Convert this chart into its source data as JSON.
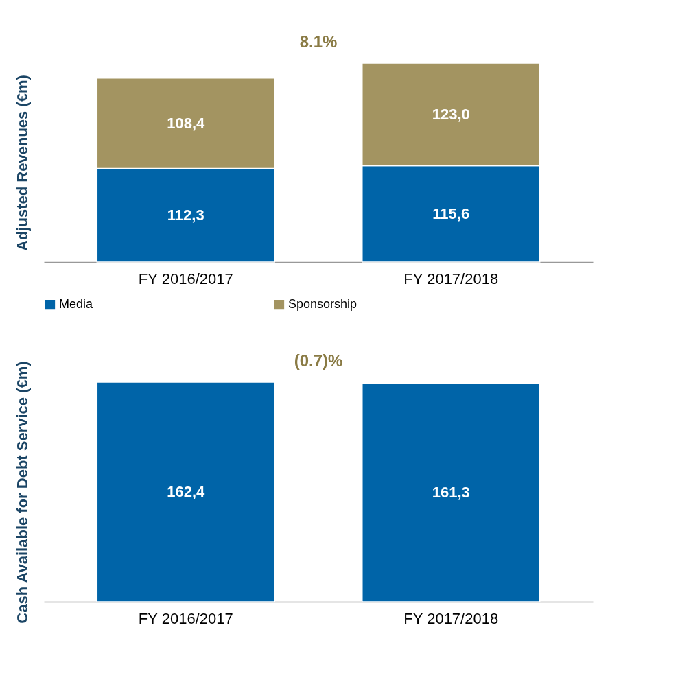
{
  "chart_data": [
    {
      "type": "bar",
      "ylabel": "Adjusted Revenues (€m)",
      "categories": [
        "FY 2016/2017",
        "FY 2017/2018"
      ],
      "stacked": true,
      "series": [
        {
          "name": "Media",
          "color": "#0064a8",
          "values": [
            112.3,
            115.6
          ],
          "value_labels": [
            "112,3",
            "115,6"
          ]
        },
        {
          "name": "Sponsorship",
          "color": "#a39461",
          "values": [
            108.4,
            123.0
          ],
          "value_labels": [
            "108,4",
            "123,0"
          ]
        }
      ],
      "annotations": [
        "8.1%"
      ],
      "legend": "bottom",
      "grid": false,
      "tick_labels": "x"
    },
    {
      "type": "bar",
      "ylabel": "Cash Available for Debt Service (€m)",
      "categories": [
        "FY 2016/2017",
        "FY 2017/2018"
      ],
      "series": [
        {
          "color": "#0064a8",
          "values": [
            162.4,
            161.3
          ],
          "value_labels": [
            "162,4",
            "161,3"
          ]
        }
      ],
      "annotations": [
        "(0.7)%"
      ],
      "legend": false,
      "grid": false,
      "tick_labels": "x"
    }
  ]
}
